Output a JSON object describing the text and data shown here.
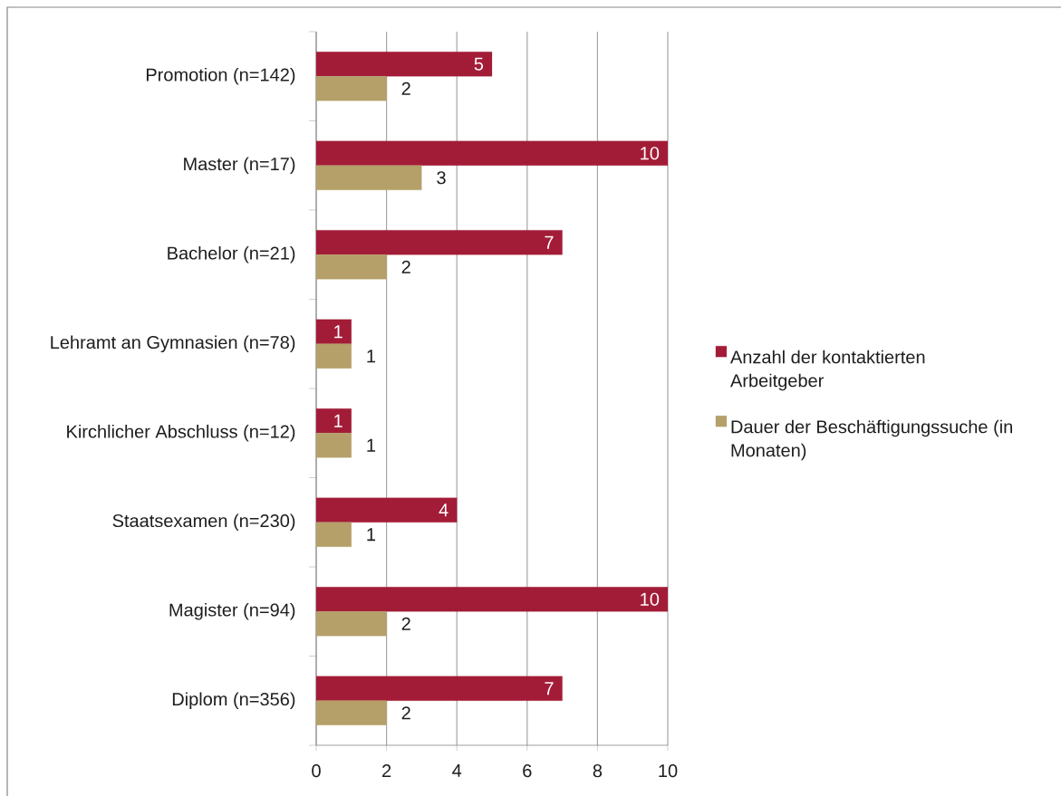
{
  "chart_data": {
    "type": "bar",
    "orientation": "horizontal",
    "categories": [
      "Promotion (n=142)",
      "Master (n=17)",
      "Bachelor (n=21)",
      "Lehramt an Gymnasien (n=78)",
      "Kirchlicher Abschluss (n=12)",
      "Staatsexamen (n=230)",
      "Magister (n=94)",
      "Diplom (n=356)"
    ],
    "series": [
      {
        "name": "Anzahl der kontaktierten Arbeitgeber",
        "color": "#a31c37",
        "values": [
          5,
          10,
          7,
          1,
          1,
          4,
          10,
          7
        ]
      },
      {
        "name": "Dauer der Beschäftigungssuche (in Monaten)",
        "color": "#b5a069",
        "values": [
          2,
          3,
          2,
          1,
          1,
          1,
          2,
          2
        ]
      }
    ],
    "xlim": [
      0,
      10
    ],
    "xticks": [
      0,
      2,
      4,
      6,
      8,
      10
    ],
    "grid": "x",
    "legend": "right",
    "data_labels": true
  }
}
